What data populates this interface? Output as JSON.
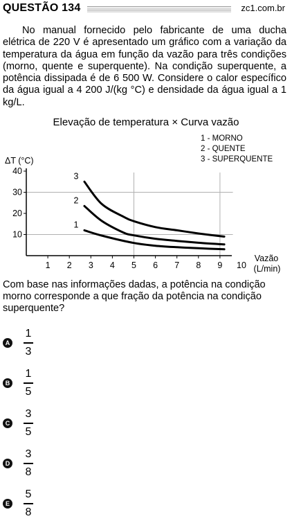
{
  "header": {
    "title": "QUESTÃO 134",
    "source": "zc1.com.br"
  },
  "stem": "No manual fornecido pelo fabricante de uma ducha elétrica de 220 V é apresentado um gráfico com a variação da temperatura da água em função da vazão para três condições (morno, quente e superquente). Na condição superquente, a potência dissipada é de 6 500 W. Considere o calor específico da água igual a 4 200 J/(kg °C) e densidade da água igual a 1 kg/L.",
  "chart_data": {
    "type": "line",
    "title": "Elevação de temperatura × Curva vazão",
    "ylabel": "ΔT (°C)",
    "xlabel": [
      "Vazão",
      "(L/min)"
    ],
    "xlim": [
      0,
      10
    ],
    "ylim": [
      0,
      40
    ],
    "xticks": [
      "1",
      "2",
      "3",
      "4",
      "5",
      "6",
      "7",
      "8",
      "9",
      "10"
    ],
    "yticks": [
      "10",
      "20",
      "30",
      "40"
    ],
    "grid": true,
    "legend": [
      "1 - MORNO",
      "2 - QUENTE",
      "3 - SUPERQUENTE"
    ],
    "series": [
      {
        "label": "1",
        "x": [
          2.7,
          3.5,
          5,
          6,
          7,
          8,
          9.2
        ],
        "y": [
          12,
          9.5,
          6,
          4.7,
          4,
          3.5,
          3
        ]
      },
      {
        "label": "2",
        "x": [
          2.7,
          3.5,
          4.5,
          5,
          6,
          7,
          8,
          9.2
        ],
        "y": [
          23.5,
          16.5,
          11,
          9.6,
          8,
          7,
          6.1,
          5.3
        ]
      },
      {
        "label": "3",
        "x": [
          2.7,
          3.5,
          4.5,
          5,
          6,
          7,
          8,
          9.2
        ],
        "y": [
          35,
          24.5,
          18.5,
          16.3,
          13.5,
          12,
          10.5,
          9
        ]
      }
    ]
  },
  "question": "Com base nas informações dadas, a potência na condição morno corresponde a que fração da potência na condição superquente?",
  "options": [
    {
      "letter": "A",
      "num": "1",
      "den": "3"
    },
    {
      "letter": "B",
      "num": "1",
      "den": "5"
    },
    {
      "letter": "C",
      "num": "3",
      "den": "5"
    },
    {
      "letter": "D",
      "num": "3",
      "den": "8"
    },
    {
      "letter": "E",
      "num": "5",
      "den": "8"
    }
  ]
}
